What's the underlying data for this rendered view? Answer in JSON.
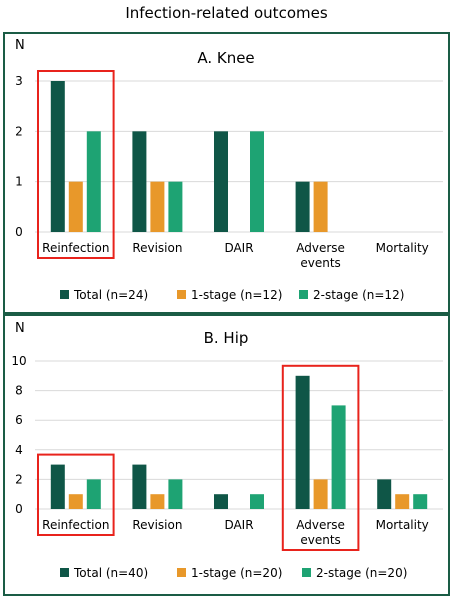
{
  "title": "Infection-related outcomes",
  "colors": {
    "total": "#0f5647",
    "one_stage": "#e8982a",
    "two_stage": "#1ea373",
    "highlight": "#e8231c",
    "frame": "#1a5c45",
    "grid": "#d9d9d9"
  },
  "chart_data": [
    {
      "type": "bar",
      "title": "A. Knee",
      "ylabel": "N",
      "ylim": [
        0,
        3
      ],
      "yticks": [
        0,
        1,
        2,
        3
      ],
      "grid": true,
      "legend_position": "bottom",
      "categories": [
        "Reinfection",
        "Revision",
        "DAIR",
        "Adverse events",
        "Mortality"
      ],
      "category_lines": [
        [
          "Reinfection"
        ],
        [
          "Revision"
        ],
        [
          "DAIR"
        ],
        [
          "Adverse",
          "events"
        ],
        [
          "Mortality"
        ]
      ],
      "series": [
        {
          "name": "Total (n=24)",
          "values": [
            3,
            2,
            2,
            1,
            0
          ]
        },
        {
          "name": "1-stage (n=12)",
          "values": [
            1,
            1,
            0,
            1,
            0
          ]
        },
        {
          "name": "2-stage (n=12)",
          "values": [
            2,
            1,
            2,
            0,
            0
          ]
        }
      ],
      "highlighted_categories": [
        "Reinfection"
      ]
    },
    {
      "type": "bar",
      "title": "B. Hip",
      "ylabel": "N",
      "ylim": [
        0,
        10
      ],
      "yticks": [
        0,
        2,
        4,
        6,
        8,
        10
      ],
      "grid": true,
      "legend_position": "bottom",
      "categories": [
        "Reinfection",
        "Revision",
        "DAIR",
        "Adverse events",
        "Mortality"
      ],
      "category_lines": [
        [
          "Reinfection"
        ],
        [
          "Revision"
        ],
        [
          "DAIR"
        ],
        [
          "Adverse",
          "events"
        ],
        [
          "Mortality"
        ]
      ],
      "series": [
        {
          "name": "Total (n=40)",
          "values": [
            3,
            3,
            1,
            9,
            2
          ]
        },
        {
          "name": "1-stage (n=20)",
          "values": [
            1,
            1,
            0,
            2,
            1
          ]
        },
        {
          "name": "2-stage (n=20)",
          "values": [
            2,
            2,
            1,
            7,
            1
          ]
        }
      ],
      "highlighted_categories": [
        "Reinfection",
        "Adverse events"
      ]
    }
  ]
}
